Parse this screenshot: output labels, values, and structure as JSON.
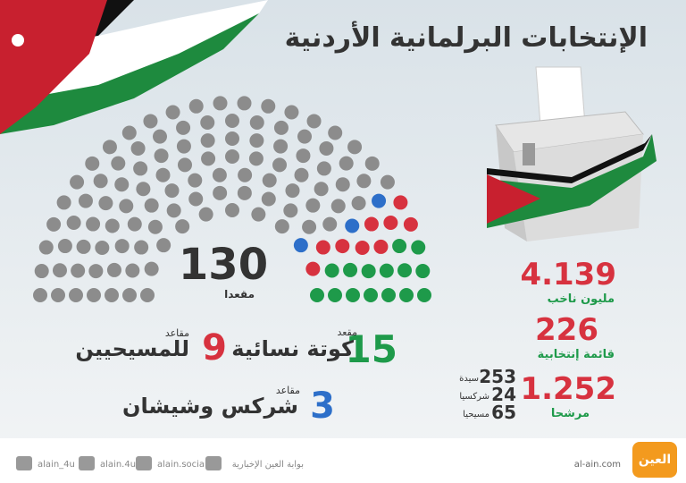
{
  "title": "الإنتخابات البرلمانية الأردنية",
  "parliament": {
    "total": 130,
    "total_label": "مقعدا",
    "groups": [
      {
        "name": "كوتة نسائية",
        "count": 15,
        "unit": "مقعد",
        "color": "#1e9a4a"
      },
      {
        "name": "للمسيحيين",
        "count": 9,
        "unit": "مقاعد",
        "color": "#d7323f"
      },
      {
        "name": "شركس وشيشان",
        "count": 3,
        "unit": "مقاعد",
        "color": "#2d6fc9"
      }
    ],
    "other_color": "#8c8c8c"
  },
  "stats": [
    {
      "value": 4.139,
      "label": "مليون ناخب"
    },
    {
      "value": 226,
      "label": "قائمة إنتخابية"
    },
    {
      "value": 1.252,
      "label": "مرشحا"
    }
  ],
  "candidates": [
    {
      "value": 253,
      "label": "سيدة"
    },
    {
      "value": 24,
      "label": "شركسيا"
    },
    {
      "value": 65,
      "label": "مسيحيا"
    }
  ],
  "footer": {
    "twitter": "alain_4u",
    "instagram": "alain.4u",
    "facebook": "alain.social",
    "youtube": "بوابة العين الإخبارية",
    "site": "al-ain.com",
    "logo": "العين"
  }
}
